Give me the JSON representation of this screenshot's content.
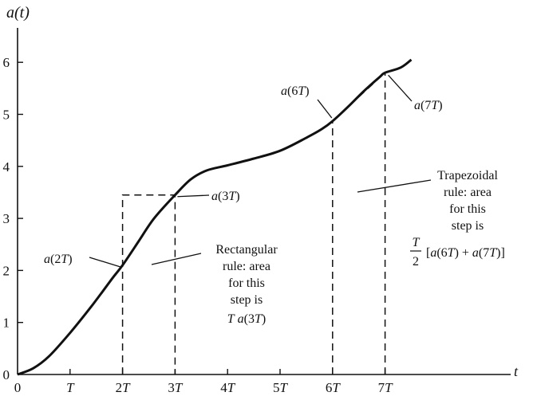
{
  "chart_data": {
    "type": "line",
    "title": "",
    "xlabel": "t",
    "ylabel": "a(t)",
    "xlim": [
      0,
      7.7
    ],
    "ylim": [
      0,
      6.5
    ],
    "x_ticks": [
      {
        "x": 0,
        "label": "0"
      },
      {
        "x": 1,
        "label": "T"
      },
      {
        "x": 2,
        "label": "2T"
      },
      {
        "x": 3,
        "label": "3T"
      },
      {
        "x": 4,
        "label": "4T"
      },
      {
        "x": 5,
        "label": "5T"
      },
      {
        "x": 6,
        "label": "6T"
      },
      {
        "x": 7,
        "label": "7T"
      }
    ],
    "y_ticks": [
      {
        "y": 0,
        "label": "0"
      },
      {
        "y": 1,
        "label": "1"
      },
      {
        "y": 2,
        "label": "2"
      },
      {
        "y": 3,
        "label": "3"
      },
      {
        "y": 4,
        "label": "4"
      },
      {
        "y": 5,
        "label": "5"
      },
      {
        "y": 6,
        "label": "6"
      }
    ],
    "series": [
      {
        "x": [
          0,
          0.3,
          0.6,
          1.0,
          1.4,
          1.8,
          2.0,
          2.3,
          2.6,
          3.0,
          3.3,
          3.6,
          4.0,
          4.5,
          5.0,
          5.5,
          5.8,
          6.0,
          6.3,
          6.6,
          6.9,
          7.0,
          7.3,
          7.5
        ],
        "y": [
          0,
          0.12,
          0.35,
          0.8,
          1.3,
          1.84,
          2.1,
          2.55,
          3.0,
          3.45,
          3.75,
          3.92,
          4.02,
          4.15,
          4.3,
          4.55,
          4.72,
          4.87,
          5.15,
          5.45,
          5.72,
          5.8,
          5.9,
          6.05
        ]
      }
    ],
    "points": [
      {
        "label": "a(2T)",
        "x": 2,
        "y": 2.1
      },
      {
        "label": "a(3T)",
        "x": 3,
        "y": 3.45
      },
      {
        "label": "a(6T)",
        "x": 6,
        "y": 4.87
      },
      {
        "label": "a(7T)",
        "x": 7,
        "y": 5.8
      }
    ],
    "rectangle": {
      "x0": 2,
      "x1": 3,
      "height": 3.45
    },
    "trapezoid": {
      "x0": 6,
      "x1": 7,
      "y0": 4.87,
      "y1": 5.8
    },
    "annotations": {
      "rectangular": [
        "Rectangular",
        "rule: area",
        "for this",
        "step is",
        "T a(3T)"
      ],
      "trapezoidal": [
        "Trapezoidal",
        "rule: area",
        "for this",
        "step is"
      ],
      "trap_formula": {
        "frac_num": "T",
        "frac_den": "2",
        "expr": "[a(6T) + a(7T)]"
      }
    }
  }
}
